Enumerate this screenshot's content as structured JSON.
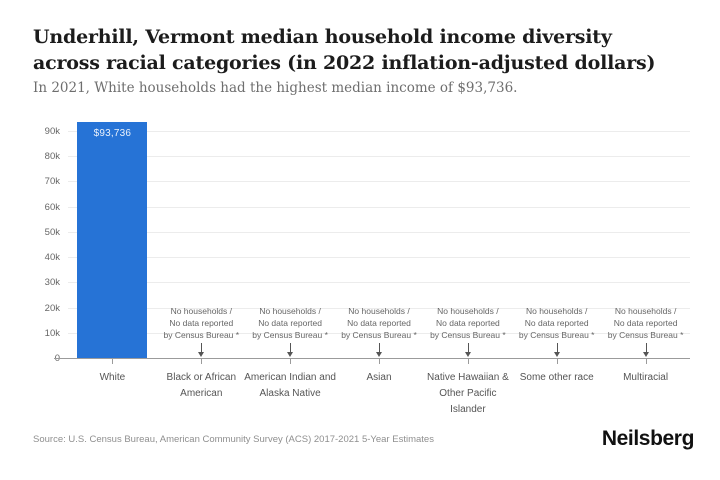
{
  "header": {
    "title": "Underhill, Vermont median household income diversity across racial categories (in 2022 inflation-adjusted dollars)",
    "subtitle": "In 2021, White households had the highest median income of $93,736."
  },
  "chart_data": {
    "type": "bar",
    "title": "Underhill, Vermont median household income diversity across racial categories (in 2022 inflation-adjusted dollars)",
    "subtitle": "In 2021, White households had the highest median income of $93,736.",
    "categories": [
      "White",
      "Black or African American",
      "American Indian and Alaska Native",
      "Asian",
      "Native Hawaiian & Other Pacific Islander",
      "Some other race",
      "Multiracial"
    ],
    "values": [
      93736,
      null,
      null,
      null,
      null,
      null,
      null
    ],
    "value_labels": [
      "$93,736",
      null,
      null,
      null,
      null,
      null,
      null
    ],
    "no_data_note_lines": [
      "No households /",
      "No data reported",
      "by Census Bureau *"
    ],
    "xlabel": "",
    "ylabel": "",
    "ylim": [
      0,
      95000
    ],
    "ytick_values": [
      0,
      10000,
      20000,
      30000,
      40000,
      50000,
      60000,
      70000,
      80000,
      90000
    ],
    "ytick_labels": [
      "0",
      "10k",
      "20k",
      "30k",
      "40k",
      "50k",
      "60k",
      "70k",
      "80k",
      "90k"
    ],
    "grid": true,
    "legend": "none",
    "colors": {
      "bar": "#2673D6",
      "bar_label": "#EAF1FB",
      "gridline": "#ECECEC",
      "axis_line": "#9B9B9B",
      "annotation": "#666666"
    }
  },
  "footer": {
    "source": "Source: U.S. Census Bureau, American Community Survey (ACS) 2017-2021 5-Year Estimates",
    "logo": "Neilsberg"
  }
}
